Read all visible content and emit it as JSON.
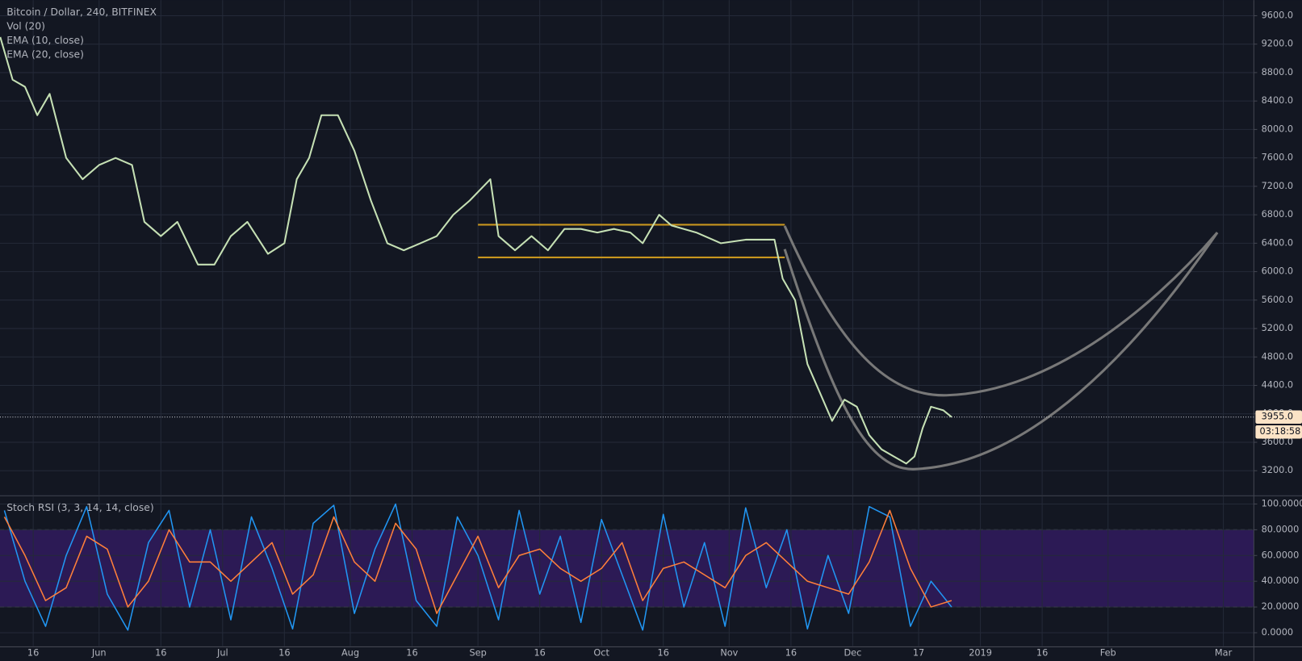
{
  "chart_data": [
    {
      "type": "line",
      "title": "Bitcoin / Dollar, 240, BITFINEX",
      "indicators": [
        "Vol (20)",
        "EMA (10, close)",
        "EMA (20, close)"
      ],
      "x": [
        7,
        10,
        13,
        16,
        19,
        23,
        27,
        31,
        35,
        39,
        42,
        46,
        50,
        55,
        59,
        63,
        67,
        72,
        76,
        79,
        82,
        85,
        89,
        93,
        97,
        101,
        105,
        109,
        113,
        117,
        121,
        126,
        128,
        132,
        136,
        140,
        144,
        148,
        152,
        156,
        160,
        163,
        167,
        170,
        176,
        182,
        188,
        195,
        197,
        200,
        203,
        206,
        209,
        212,
        215,
        218,
        221,
        224,
        227,
        229,
        231,
        233,
        236,
        238
      ],
      "series": [
        {
          "color": "#c5e0b4",
          "values": [
            9300,
            8700,
            8600,
            8200,
            8500,
            7600,
            7300,
            7500,
            7600,
            7500,
            6700,
            6500,
            6700,
            6100,
            6100,
            6500,
            6700,
            6250,
            6400,
            7300,
            7600,
            8200,
            8200,
            7700,
            7000,
            6400,
            6300,
            6400,
            6500,
            6800,
            7000,
            7300,
            6500,
            6300,
            6500,
            6300,
            6600,
            6600,
            6550,
            6600,
            6550,
            6400,
            6800,
            6650,
            6550,
            6400,
            6450,
            6450,
            5900,
            5600,
            4700,
            4300,
            3900,
            4200,
            4100,
            3700,
            3500,
            3400,
            3300,
            3400,
            3800,
            4100,
            4050,
            3955
          ]
        }
      ],
      "last_price": {
        "value": 3955,
        "label": "3955.0"
      },
      "countdown": "03:18:58",
      "channel": {
        "x": [
          123,
          197.5
        ],
        "levels": [
          6660,
          6200
        ],
        "color": "#c8961e"
      },
      "xlim": [
        6.94,
        311.4
      ],
      "xticks": [
        {
          "value": 15,
          "label": "16"
        },
        {
          "value": 31,
          "label": "Jun"
        },
        {
          "value": 46,
          "label": "16"
        },
        {
          "value": 61,
          "label": "Jul"
        },
        {
          "value": 76,
          "label": "16"
        },
        {
          "value": 92,
          "label": "Aug"
        },
        {
          "value": 107,
          "label": "16"
        },
        {
          "value": 123,
          "label": "Sep"
        },
        {
          "value": 138,
          "label": "16"
        },
        {
          "value": 153,
          "label": "Oct"
        },
        {
          "value": 168,
          "label": "16"
        },
        {
          "value": 184,
          "label": "Nov"
        },
        {
          "value": 199,
          "label": "16"
        },
        {
          "value": 214,
          "label": "Dec"
        },
        {
          "value": 230,
          "label": "17"
        },
        {
          "value": 245,
          "label": "2019"
        },
        {
          "value": 260,
          "label": "16"
        },
        {
          "value": 276,
          "label": "Feb"
        },
        {
          "value": 304,
          "label": "Mar"
        }
      ],
      "ylim": [
        2860,
        9820
      ],
      "yticks": [
        {
          "value": 3200,
          "label": "3200.0"
        },
        {
          "value": 3600,
          "label": "3600.0"
        },
        {
          "value": 4000,
          "label": "4000.0"
        },
        {
          "value": 4400,
          "label": "4400.0"
        },
        {
          "value": 4800,
          "label": "4800.0"
        },
        {
          "value": 5200,
          "label": "5200.0"
        },
        {
          "value": 5600,
          "label": "5600.0"
        },
        {
          "value": 6000,
          "label": "6000.0"
        },
        {
          "value": 6400,
          "label": "6400.0"
        },
        {
          "value": 6800,
          "label": "6800.0"
        },
        {
          "value": 7200,
          "label": "7200.0"
        },
        {
          "value": 7600,
          "label": "7600.0"
        },
        {
          "value": 8000,
          "label": "8000.0"
        },
        {
          "value": 8400,
          "label": "8400.0"
        },
        {
          "value": 8800,
          "label": "8800.0"
        },
        {
          "value": 9200,
          "label": "9200.0"
        },
        {
          "value": 9600,
          "label": "9600.0"
        }
      ],
      "grid": true
    },
    {
      "type": "line",
      "title": "Stoch RSI (3, 3, 14, 14, close)",
      "x": [
        8,
        13,
        18,
        23,
        28,
        33,
        38,
        43,
        48,
        53,
        58,
        63,
        68,
        73,
        78,
        83,
        88,
        93,
        98,
        103,
        108,
        113,
        118,
        123,
        128,
        133,
        138,
        143,
        148,
        153,
        158,
        163,
        168,
        173,
        178,
        183,
        188,
        193,
        198,
        203,
        208,
        213,
        218,
        223,
        228,
        233,
        238
      ],
      "series": [
        {
          "color": "#2196f3",
          "values": [
            95,
            40,
            5,
            60,
            98,
            30,
            2,
            70,
            95,
            20,
            80,
            10,
            90,
            50,
            3,
            85,
            99,
            15,
            65,
            100,
            25,
            5,
            90,
            60,
            10,
            95,
            30,
            75,
            8,
            88,
            45,
            2,
            92,
            20,
            70,
            5,
            97,
            35,
            80,
            3,
            60,
            15,
            98,
            90,
            5,
            40,
            20
          ]
        },
        {
          "color": "#ff7f3a",
          "values": [
            90,
            60,
            25,
            35,
            75,
            65,
            20,
            40,
            80,
            55,
            55,
            40,
            55,
            70,
            30,
            45,
            90,
            55,
            40,
            85,
            65,
            15,
            45,
            75,
            35,
            60,
            65,
            50,
            40,
            50,
            70,
            25,
            50,
            55,
            45,
            35,
            60,
            70,
            55,
            40,
            35,
            30,
            55,
            95,
            50,
            20,
            25
          ]
        }
      ],
      "band": [
        20,
        80
      ],
      "band_color": "#311b5e",
      "xlim": [
        6.94,
        311.4
      ],
      "ylim": [
        -10.3,
        105.8
      ],
      "yticks": [
        {
          "value": 0,
          "label": "0.0000"
        },
        {
          "value": 20,
          "label": "20.0000"
        },
        {
          "value": 40,
          "label": "40.0000"
        },
        {
          "value": 60,
          "label": "60.0000"
        },
        {
          "value": 80,
          "label": "80.0000"
        },
        {
          "value": 100,
          "label": "100.0000"
        }
      ],
      "grid": true
    }
  ]
}
